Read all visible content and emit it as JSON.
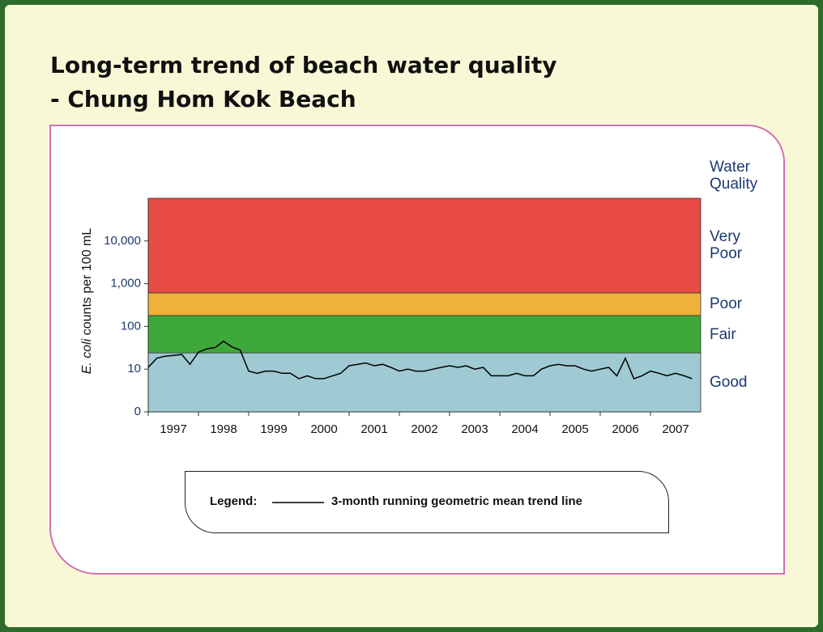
{
  "chart_data": {
    "type": "line",
    "title": [
      "Long-term trend of beach water quality",
      "- Chung Hom Kok Beach"
    ],
    "y_label_italic": "E. coli",
    "y_label": "counts per 100 mL",
    "log_scale": true,
    "ylim": [
      1,
      100000
    ],
    "yticks": [
      0,
      10,
      100,
      {
        "value": 1000,
        "label": "1,000"
      },
      {
        "value": 10000,
        "label": "10,000"
      }
    ],
    "xlim": [
      1997,
      2008
    ],
    "categories": [
      "1997",
      "1998",
      "1999",
      "2000",
      "2001",
      "2002",
      "2003",
      "2004",
      "2005",
      "2006",
      "2007"
    ],
    "band_title": "Water Quality",
    "bands": [
      {
        "name": "Good",
        "to": 24,
        "color": "#9fcad3"
      },
      {
        "name": "Fair",
        "to": 180,
        "color": "#3fa83a"
      },
      {
        "name": "Poor",
        "to": 610,
        "color": "#f0b03c"
      },
      {
        "name": "Very Poor",
        "color": "#e84a45"
      }
    ],
    "legend_label": "Legend:",
    "series": [
      {
        "name": "3-month running geometric mean trend line",
        "color": "#000000",
        "x": [
          1997,
          1997.17,
          1997.33,
          1997.5,
          1997.67,
          1997.83,
          1998,
          1998.17,
          1998.33,
          1998.5,
          1998.67,
          1998.83,
          1999,
          1999.17,
          1999.33,
          1999.5,
          1999.67,
          1999.83,
          2000,
          2000.17,
          2000.33,
          2000.5,
          2000.67,
          2000.83,
          2001,
          2001.17,
          2001.33,
          2001.5,
          2001.67,
          2001.83,
          2002,
          2002.17,
          2002.33,
          2002.5,
          2002.67,
          2002.83,
          2003,
          2003.17,
          2003.33,
          2003.5,
          2003.67,
          2003.83,
          2004,
          2004.17,
          2004.33,
          2004.5,
          2004.67,
          2004.83,
          2005,
          2005.17,
          2005.33,
          2005.5,
          2005.67,
          2005.83,
          2006,
          2006.17,
          2006.33,
          2006.5,
          2006.67,
          2006.83,
          2007,
          2007.17,
          2007.33,
          2007.5,
          2007.67,
          2007.83
        ],
        "values": [
          11,
          18,
          20,
          21,
          22,
          13,
          25,
          30,
          32,
          45,
          33,
          28,
          9,
          8,
          9,
          9,
          8,
          8,
          6,
          7,
          6,
          6,
          7,
          8,
          12,
          13,
          14,
          12,
          13,
          11,
          9,
          10,
          9,
          9,
          10,
          11,
          12,
          11,
          12,
          10,
          11,
          7,
          7,
          7,
          8,
          7,
          7,
          10,
          12,
          13,
          12,
          12,
          10,
          9,
          10,
          11,
          7,
          18,
          6,
          7,
          9,
          8,
          7,
          8,
          7,
          6
        ]
      }
    ]
  }
}
